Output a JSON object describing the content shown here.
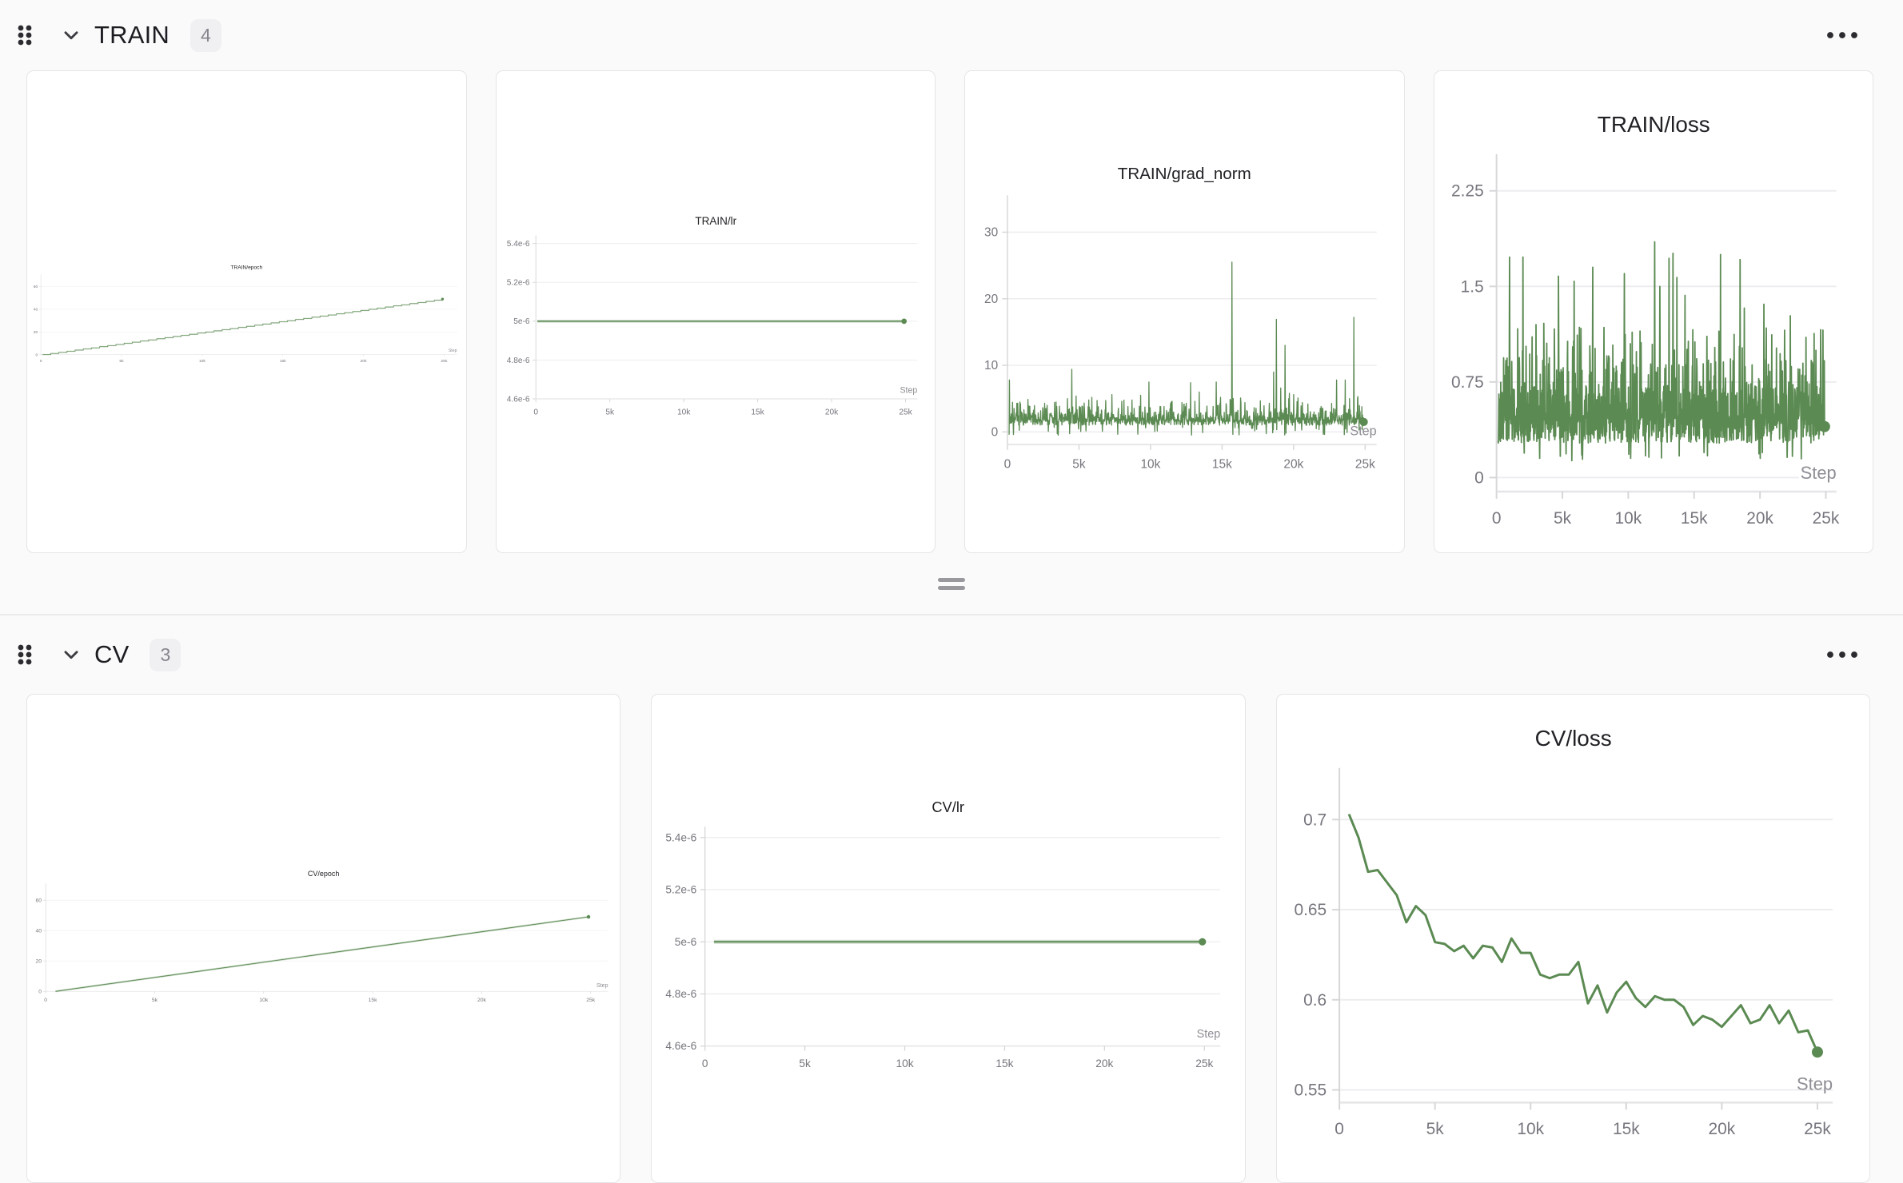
{
  "page": {
    "background": "#fafafa",
    "card_background": "#ffffff"
  },
  "colors": {
    "line_green": "#5b8a52",
    "line_halo": "rgba(91,138,82,0.28)",
    "grid": "#ededf0",
    "axis": "#d7d7da",
    "axis_bottom": "#e5e5e8",
    "tick_label": "#76767e",
    "step_label": "#8e8e95",
    "chart_title": "#212126"
  },
  "sections": [
    {
      "title": "TRAIN",
      "badge": "4",
      "chart_ids": [
        0,
        1,
        2,
        3
      ]
    },
    {
      "title": "CV",
      "badge": "3",
      "chart_ids": [
        4,
        5,
        6
      ]
    }
  ],
  "chart_data": [
    {
      "type": "line",
      "title": "TRAIN/epoch",
      "xlabel": "Step",
      "x_tick_values": [
        0,
        5000,
        10000,
        15000,
        20000,
        25000
      ],
      "x_tick_labels": [
        "0",
        "5k",
        "10k",
        "15k",
        "20k",
        "25k"
      ],
      "xlim": [
        0,
        25800
      ],
      "y_tick_values": [
        0,
        20,
        40,
        60
      ],
      "y_tick_labels": [
        "0",
        "20",
        "40",
        "60"
      ],
      "ylim": [
        0,
        70
      ],
      "grid": true,
      "step_label_layer": "front",
      "series": [
        {
          "name": "epoch",
          "gen": "staircase",
          "x0": 100,
          "x1": 24900,
          "y0": 0,
          "y1": 49,
          "halo": true,
          "width": 2.6,
          "end_dot": true
        }
      ]
    },
    {
      "type": "line",
      "title": "TRAIN/lr",
      "xlabel": "Step",
      "x_tick_values": [
        0,
        5000,
        10000,
        15000,
        20000,
        25000
      ],
      "x_tick_labels": [
        "0",
        "5k",
        "10k",
        "15k",
        "20k",
        "25k"
      ],
      "xlim": [
        0,
        25800
      ],
      "y_tick_values": [
        5.4e-06,
        5.2e-06,
        5e-06,
        4.8e-06,
        4.6e-06
      ],
      "y_tick_labels": [
        "5.4e-6",
        "5.2e-6",
        "5e-6",
        "4.8e-6",
        "4.6e-6"
      ],
      "ylim": [
        4.6e-06,
        5.43e-06
      ],
      "grid": true,
      "step_label_layer": "front",
      "series": [
        {
          "name": "lr",
          "gen": "points",
          "points": [
            [
              100,
              5e-06
            ],
            [
              24900,
              5e-06
            ]
          ],
          "halo": true,
          "width": 3.2,
          "end_dot": true
        }
      ]
    },
    {
      "type": "line",
      "title": "TRAIN/grad_norm",
      "xlabel": "Step",
      "x_tick_values": [
        0,
        5000,
        10000,
        15000,
        20000,
        25000
      ],
      "x_tick_labels": [
        "0",
        "5k",
        "10k",
        "15k",
        "20k",
        "25k"
      ],
      "xlim": [
        0,
        25800
      ],
      "y_tick_values": [
        0,
        10,
        20,
        30
      ],
      "y_tick_labels": [
        "0",
        "10",
        "20",
        "30"
      ],
      "ylim": [
        -1.9,
        35
      ],
      "grid": true,
      "step_label_layer": "back",
      "series": [
        {
          "name": "grad_norm",
          "gen": "noise_band",
          "seed": 7,
          "n": 1150,
          "x0": 120,
          "x1": 24900,
          "bands": [
            [
              0.55,
              1.0,
              2.2
            ],
            [
              0.85,
              1.5,
              3.0
            ],
            [
              0.96,
              2.4,
              4.0
            ],
            [
              1.0,
              3.2,
              5.2
            ]
          ],
          "dip_p": 0.035,
          "dip": [
            -0.5,
            0.7
          ],
          "end_value": 1.5,
          "spikes": [
            [
              150,
              7.8
            ],
            [
              700,
              4.1
            ],
            [
              1500,
              3.9
            ],
            [
              2600,
              4.3
            ],
            [
              3400,
              4.5
            ],
            [
              4200,
              5.0
            ],
            [
              4500,
              9.4
            ],
            [
              4800,
              5.4
            ],
            [
              5900,
              5.2
            ],
            [
              7300,
              5.6
            ],
            [
              8000,
              4.6
            ],
            [
              8700,
              4.8
            ],
            [
              9300,
              5.5
            ],
            [
              9900,
              7.5
            ],
            [
              10700,
              3.8
            ],
            [
              11500,
              4.6
            ],
            [
              12200,
              4.4
            ],
            [
              12500,
              4.3
            ],
            [
              12800,
              7.4
            ],
            [
              13100,
              4.6
            ],
            [
              13400,
              6.0
            ],
            [
              14600,
              7.5
            ],
            [
              14900,
              5.2
            ],
            [
              15700,
              25.5
            ],
            [
              16300,
              5.1
            ],
            [
              16600,
              4.4
            ],
            [
              18300,
              4.3
            ],
            [
              18600,
              9.0
            ],
            [
              18800,
              16.9
            ],
            [
              19100,
              6.6
            ],
            [
              19400,
              13.0
            ],
            [
              19700,
              5.8
            ],
            [
              20000,
              5.6
            ],
            [
              20300,
              5.1
            ],
            [
              20600,
              4.4
            ],
            [
              21000,
              4.2
            ],
            [
              23000,
              7.8
            ],
            [
              23600,
              7.8
            ],
            [
              23900,
              5.0
            ],
            [
              24200,
              17.2
            ],
            [
              24500,
              5.3
            ]
          ],
          "halo": false,
          "width": 1.8,
          "end_dot": true
        }
      ]
    },
    {
      "type": "line",
      "title": "TRAIN/loss",
      "xlabel": "Step",
      "x_tick_values": [
        0,
        5000,
        10000,
        15000,
        20000,
        25000
      ],
      "x_tick_labels": [
        "0",
        "5k",
        "10k",
        "15k",
        "20k",
        "25k"
      ],
      "xlim": [
        0,
        25800
      ],
      "y_tick_values": [
        0,
        0.75,
        1.5,
        2.25
      ],
      "y_tick_labels": [
        "0",
        "0.75",
        "1.5",
        "2.25"
      ],
      "ylim": [
        -0.11,
        2.5
      ],
      "grid": true,
      "step_label_layer": "front_halo",
      "series": [
        {
          "name": "loss",
          "gen": "noise_band",
          "seed": 13,
          "n": 1250,
          "x0": 120,
          "x1": 24900,
          "bands": [
            [
              0.5,
              0.27,
              0.5
            ],
            [
              0.82,
              0.45,
              0.72
            ],
            [
              0.95,
              0.63,
              0.95
            ],
            [
              1.0,
              0.85,
              1.18
            ]
          ],
          "dip_p": 0.015,
          "dip": [
            0.12,
            0.2
          ],
          "end_value": 0.4,
          "spikes": [
            [
              1000,
              1.73
            ],
            [
              2000,
              1.73
            ],
            [
              3000,
              1.2
            ],
            [
              3600,
              1.21
            ],
            [
              4700,
              1.58
            ],
            [
              5900,
              1.54
            ],
            [
              6400,
              1.17
            ],
            [
              7300,
              1.65
            ],
            [
              9700,
              1.6
            ],
            [
              10300,
              1.14
            ],
            [
              10900,
              1.15
            ],
            [
              12000,
              1.85
            ],
            [
              12400,
              1.5
            ],
            [
              13100,
              1.72
            ],
            [
              13400,
              1.76
            ],
            [
              13700,
              1.57
            ],
            [
              14300,
              1.43
            ],
            [
              14900,
              1.16
            ],
            [
              17000,
              1.75
            ],
            [
              18500,
              1.71
            ],
            [
              18800,
              1.33
            ],
            [
              20300,
              1.36
            ],
            [
              20900,
              1.12
            ],
            [
              22300,
              1.27
            ],
            [
              23500,
              1.1
            ],
            [
              24100,
              1.13
            ],
            [
              24600,
              1.16
            ]
          ],
          "halo": false,
          "width": 1.8,
          "end_dot": true
        }
      ]
    },
    {
      "type": "line",
      "title": "CV/epoch",
      "xlabel": "Step",
      "x_tick_values": [
        0,
        5000,
        10000,
        15000,
        20000,
        25000
      ],
      "x_tick_labels": [
        "0",
        "5k",
        "10k",
        "15k",
        "20k",
        "25k"
      ],
      "xlim": [
        0,
        25800
      ],
      "y_tick_values": [
        0,
        20,
        40,
        60
      ],
      "y_tick_labels": [
        "0",
        "20",
        "40",
        "60"
      ],
      "ylim": [
        0,
        70
      ],
      "grid": true,
      "step_label_layer": "front",
      "series": [
        {
          "name": "epoch",
          "gen": "points",
          "points": [
            [
              450,
              0
            ],
            [
              12650,
              24.5
            ],
            [
              24900,
              49
            ]
          ],
          "halo": true,
          "width": 3.0,
          "end_dot": true
        }
      ]
    },
    {
      "type": "line",
      "title": "CV/lr",
      "xlabel": "Step",
      "x_tick_values": [
        0,
        5000,
        10000,
        15000,
        20000,
        25000
      ],
      "x_tick_labels": [
        "0",
        "5k",
        "10k",
        "15k",
        "20k",
        "25k"
      ],
      "xlim": [
        0,
        25800
      ],
      "y_tick_values": [
        5.4e-06,
        5.2e-06,
        5e-06,
        4.8e-06,
        4.6e-06
      ],
      "y_tick_labels": [
        "5.4e-6",
        "5.2e-6",
        "5e-6",
        "4.8e-6",
        "4.6e-6"
      ],
      "ylim": [
        4.6e-06,
        5.43e-06
      ],
      "grid": true,
      "step_label_layer": "front",
      "series": [
        {
          "name": "lr",
          "gen": "points",
          "points": [
            [
              450,
              5e-06
            ],
            [
              24900,
              5e-06
            ]
          ],
          "halo": true,
          "width": 3.2,
          "end_dot": true
        }
      ]
    },
    {
      "type": "line",
      "title": "CV/loss",
      "xlabel": "Step",
      "x_tick_values": [
        0,
        5000,
        10000,
        15000,
        20000,
        25000
      ],
      "x_tick_labels": [
        "0",
        "5k",
        "10k",
        "15k",
        "20k",
        "25k"
      ],
      "xlim": [
        0,
        25800
      ],
      "y_tick_values": [
        0.55,
        0.6,
        0.65,
        0.7
      ],
      "y_tick_labels": [
        "0.55",
        "0.6",
        "0.65",
        "0.7"
      ],
      "ylim": [
        0.543,
        0.726
      ],
      "grid": true,
      "step_label_layer": "front",
      "series": [
        {
          "name": "loss",
          "gen": "points",
          "halo": false,
          "width": 3.0,
          "end_dot": true,
          "points": [
            [
              500,
              0.703
            ],
            [
              1000,
              0.69
            ],
            [
              1500,
              0.671
            ],
            [
              2000,
              0.672
            ],
            [
              2500,
              0.665
            ],
            [
              3000,
              0.658
            ],
            [
              3500,
              0.643
            ],
            [
              4000,
              0.652
            ],
            [
              4500,
              0.647
            ],
            [
              5000,
              0.632
            ],
            [
              5500,
              0.631
            ],
            [
              6000,
              0.627
            ],
            [
              6500,
              0.63
            ],
            [
              7000,
              0.623
            ],
            [
              7500,
              0.63
            ],
            [
              8000,
              0.629
            ],
            [
              8500,
              0.621
            ],
            [
              9000,
              0.634
            ],
            [
              9500,
              0.626
            ],
            [
              10000,
              0.626
            ],
            [
              10500,
              0.614
            ],
            [
              11000,
              0.612
            ],
            [
              11500,
              0.614
            ],
            [
              12000,
              0.614
            ],
            [
              12500,
              0.621
            ],
            [
              13000,
              0.598
            ],
            [
              13500,
              0.608
            ],
            [
              14000,
              0.593
            ],
            [
              14500,
              0.604
            ],
            [
              15000,
              0.61
            ],
            [
              15500,
              0.601
            ],
            [
              16000,
              0.596
            ],
            [
              16500,
              0.602
            ],
            [
              17000,
              0.6
            ],
            [
              17500,
              0.6
            ],
            [
              18000,
              0.596
            ],
            [
              18500,
              0.586
            ],
            [
              19000,
              0.591
            ],
            [
              19500,
              0.589
            ],
            [
              20000,
              0.585
            ],
            [
              20500,
              0.591
            ],
            [
              21000,
              0.597
            ],
            [
              21500,
              0.587
            ],
            [
              22000,
              0.589
            ],
            [
              22500,
              0.597
            ],
            [
              23000,
              0.587
            ],
            [
              23500,
              0.594
            ],
            [
              24000,
              0.582
            ],
            [
              24500,
              0.583
            ],
            [
              25000,
              0.571
            ]
          ]
        }
      ]
    }
  ]
}
